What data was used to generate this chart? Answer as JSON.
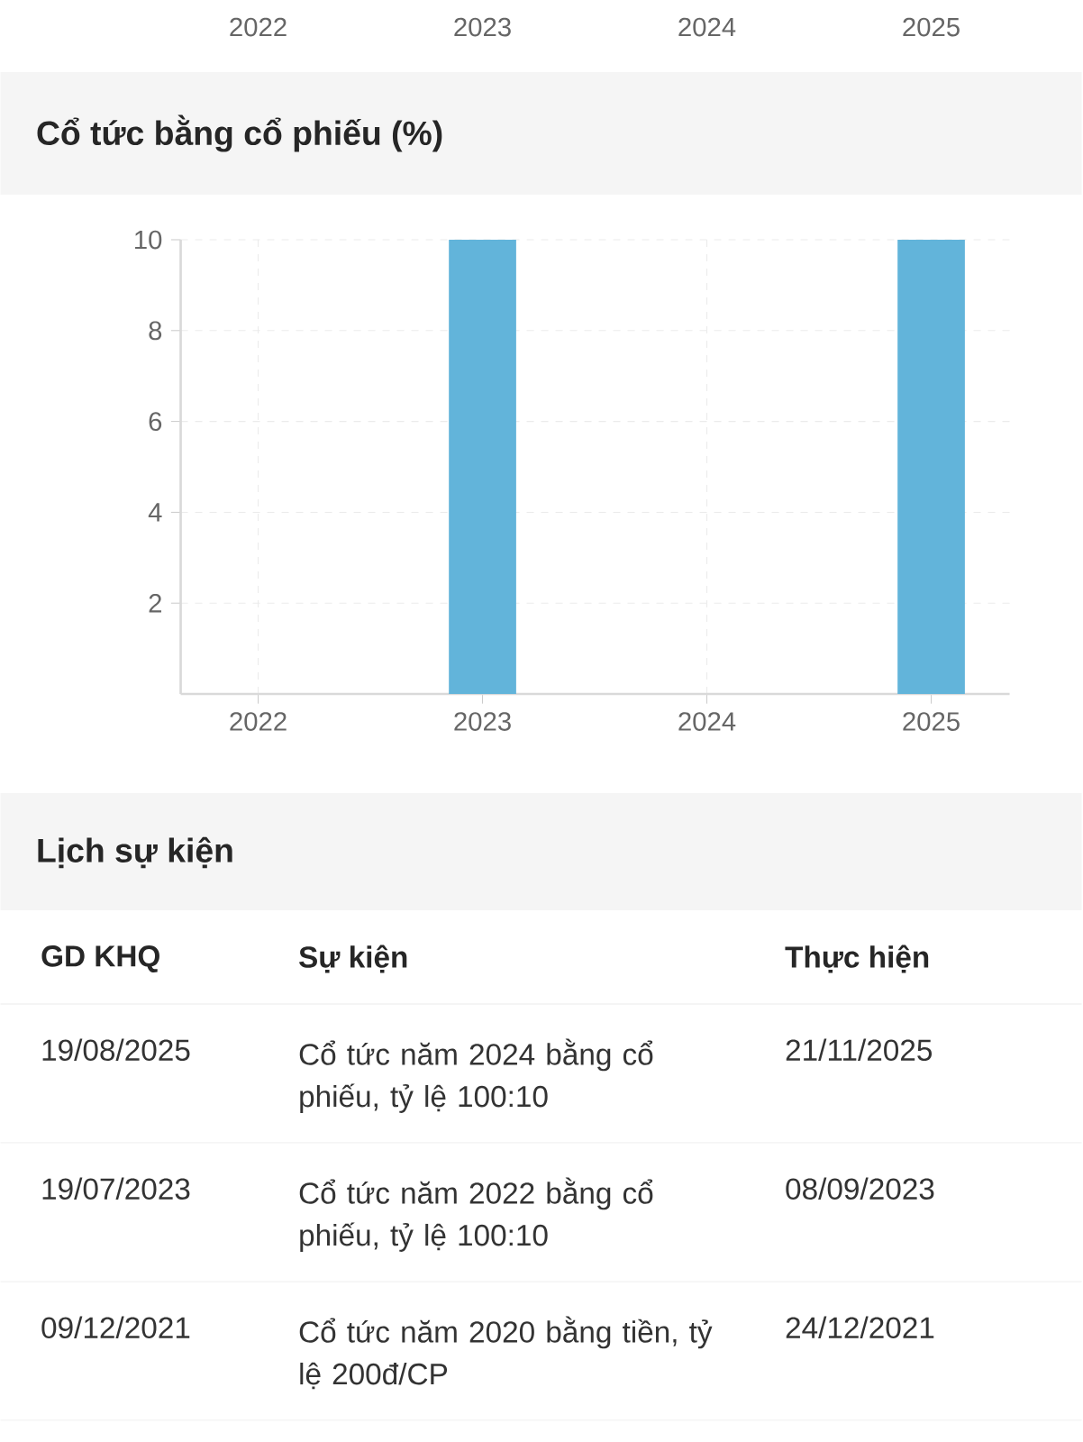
{
  "chart_data": {
    "type": "bar",
    "title": "Cổ tức bằng cổ phiếu (%)",
    "categories": [
      "2022",
      "2023",
      "2024",
      "2025"
    ],
    "values": [
      null,
      10,
      null,
      10
    ],
    "color": "#62b4da",
    "ylim": [
      0,
      10
    ],
    "yticks": [
      2,
      4,
      6,
      8,
      10
    ],
    "grid": true,
    "annotations": [
      "2022",
      "2023",
      "2024",
      "2025",
      "Lịch sự kiện",
      "GD KHQ",
      "Sự kiện",
      "Thực hiện",
      "19/08/2025",
      "Cổ tức năm 2024 bằng cổ phiếu, tỷ lệ 100:10",
      "21/11/2025",
      "19/07/2023",
      "Cổ tức năm 2022 bằng cổ phiếu, tỷ lệ 100:10",
      "08/09/2023",
      "09/12/2021",
      "Cổ tức năm 2020 bằng tiền, tỷ lệ 200đ/CP",
      "24/12/2021"
    ]
  }
}
